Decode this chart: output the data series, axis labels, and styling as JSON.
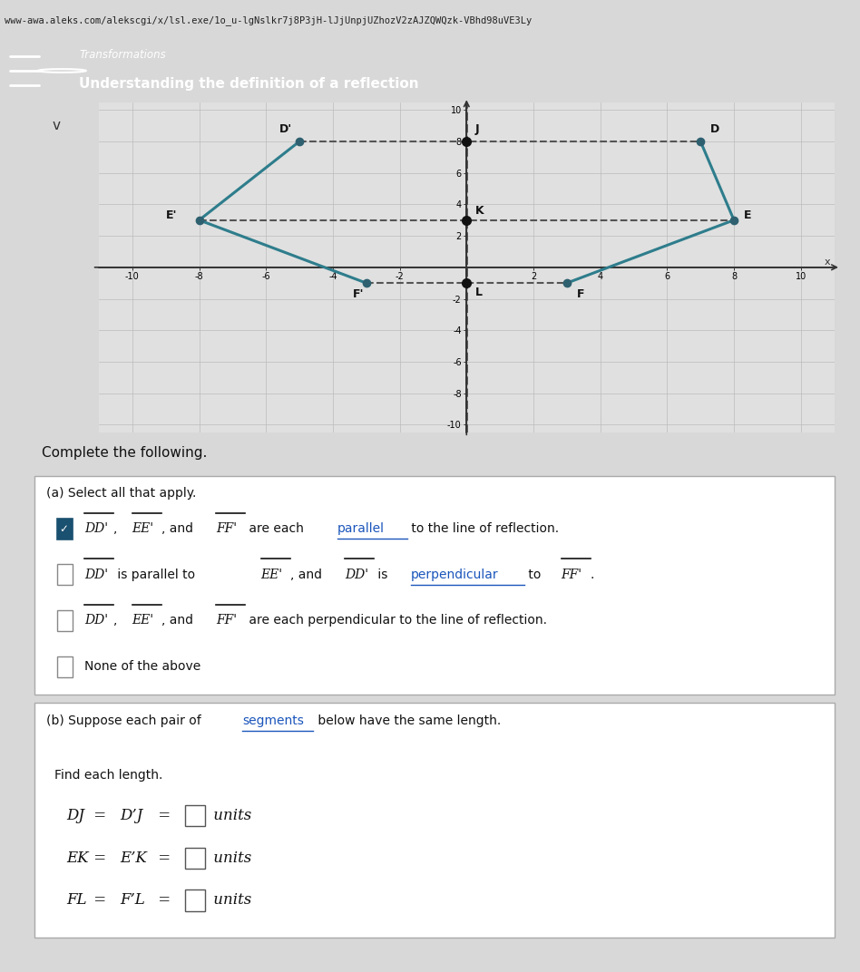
{
  "title": "Transformations",
  "subtitle": "Understanding the definition of a reflection",
  "url_bar": "www-awa.aleks.com/alekscgi/x/lsl.exe/1o_u-lgNslkr7j8P3jH-lJjUnpjUZhozV2zAJZQWQzk-VBhd98uVE3Ly",
  "graph": {
    "xlim": [
      -11,
      11
    ],
    "ylim": [
      -10.5,
      10.5
    ],
    "xticks": [
      -10,
      -8,
      -6,
      -4,
      -2,
      2,
      4,
      6,
      8,
      10
    ],
    "yticks": [
      -10,
      -8,
      -6,
      -4,
      -2,
      2,
      4,
      6,
      8,
      10
    ],
    "D_prime": [
      -5,
      8
    ],
    "D": [
      7,
      8
    ],
    "J": [
      0,
      8
    ],
    "E_prime": [
      -8,
      3
    ],
    "E": [
      8,
      3
    ],
    "K": [
      0,
      3
    ],
    "F_prime": [
      -3,
      -1
    ],
    "F": [
      3,
      -1
    ],
    "L": [
      0,
      -1
    ],
    "shape_color": "#2e7d8c",
    "dashed_color": "#555555",
    "point_color": "#2e6070",
    "midpoint_color": "#1a1a1a",
    "bg_color": "#e0e0e0",
    "grid_color": "#bbbbbb"
  },
  "complete_text": "Complete the following.",
  "part_a_label": "(a) Select all that apply.",
  "part_b_label": "(b) Suppose each pair of segments below have the same length.",
  "part_b_sublabel": "Find each length.",
  "header_bg": "#3a7a8c",
  "page_bg": "#d8d8d8",
  "box_bg": "#ffffff",
  "box_border": "#aaaaaa",
  "url_bg": "#e8e8e8"
}
